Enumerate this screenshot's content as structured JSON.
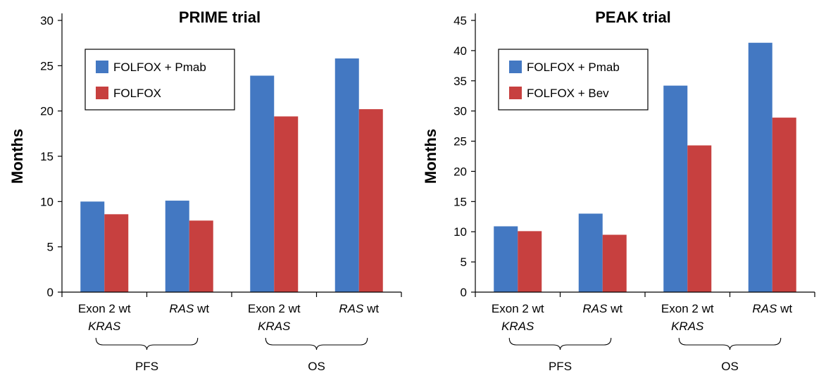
{
  "colors": {
    "series1": "#4378c2",
    "series2": "#c7403f"
  },
  "chart_data": [
    {
      "type": "bar",
      "title": "PRIME trial",
      "ylabel": "Months",
      "xlabel": "",
      "ylim": [
        0,
        30
      ],
      "yticks": [
        0,
        5,
        10,
        15,
        20,
        25,
        30
      ],
      "categories": [
        {
          "line1": "Exon 2 wt",
          "line2": "KRAS"
        },
        {
          "line1": "wt",
          "prefix": "RAS"
        },
        {
          "line1": "Exon 2 wt",
          "line2": "KRAS"
        },
        {
          "line1": "wt",
          "prefix": "RAS"
        }
      ],
      "groups": [
        {
          "label": "PFS",
          "categories": [
            0,
            1
          ]
        },
        {
          "label": "OS",
          "categories": [
            2,
            3
          ]
        }
      ],
      "series": [
        {
          "name": "FOLFOX + Pmab",
          "color": "#4378c2",
          "values": [
            10.0,
            10.1,
            23.9,
            25.8
          ]
        },
        {
          "name": "FOLFOX",
          "color": "#c7403f",
          "values": [
            8.6,
            7.9,
            19.4,
            20.2
          ]
        }
      ],
      "legend": "top-left",
      "grid": false
    },
    {
      "type": "bar",
      "title": "PEAK trial",
      "ylabel": "Months",
      "xlabel": "",
      "ylim": [
        0,
        45
      ],
      "yticks": [
        0,
        5,
        10,
        15,
        20,
        25,
        30,
        35,
        40,
        45
      ],
      "categories": [
        {
          "line1": "Exon 2 wt",
          "line2": "KRAS"
        },
        {
          "line1": "wt",
          "prefix": "RAS"
        },
        {
          "line1": "Exon 2 wt",
          "line2": "KRAS"
        },
        {
          "line1": "wt",
          "prefix": "RAS"
        }
      ],
      "groups": [
        {
          "label": "PFS",
          "categories": [
            0,
            1
          ]
        },
        {
          "label": "OS",
          "categories": [
            2,
            3
          ]
        }
      ],
      "series": [
        {
          "name": "FOLFOX + Pmab",
          "color": "#4378c2",
          "values": [
            10.9,
            13.0,
            34.2,
            41.3
          ]
        },
        {
          "name": "FOLFOX + Bev",
          "color": "#c7403f",
          "values": [
            10.1,
            9.5,
            24.3,
            28.9
          ]
        }
      ],
      "legend": "top-left",
      "grid": false
    }
  ]
}
